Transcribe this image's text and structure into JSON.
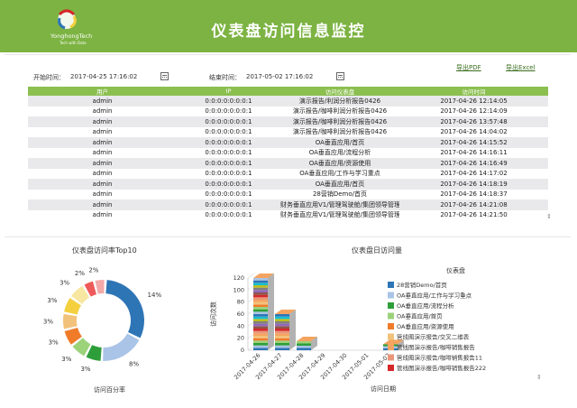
{
  "header": {
    "title": "仪表盘访问信息监控",
    "logo_text": "YonghongTech",
    "logo_sub": "Tech with Data"
  },
  "filters": {
    "start_label": "开始时间：",
    "start_value": "2017-04-25 17:16:02",
    "end_label": "结束时间：",
    "end_value": "2017-05-02 17:16:02",
    "export_pdf": "导出PDF",
    "export_excel": "导出Excel"
  },
  "table": {
    "columns": [
      "用户",
      "IP",
      "访问仪表盘",
      "访问时间"
    ],
    "rows": [
      [
        "admin",
        "0:0:0:0:0:0:0:1",
        "演示报告/利润分析报告0426",
        "2017-04-26 12:14:05"
      ],
      [
        "admin",
        "0:0:0:0:0:0:0:1",
        "演示报告/咖啡利润分析报告0426",
        "2017-04-26 12:14:09"
      ],
      [
        "admin",
        "0:0:0:0:0:0:0:1",
        "演示报告/咖啡利润分析报告0426",
        "2017-04-26 13:57:48"
      ],
      [
        "admin",
        "0:0:0:0:0:0:0:1",
        "演示报告/咖啡利润分析报告0426",
        "2017-04-26 14:04:02"
      ],
      [
        "admin",
        "0:0:0:0:0:0:0:1",
        "OA垂直应用/首页",
        "2017-04-26 14:15:52"
      ],
      [
        "admin",
        "0:0:0:0:0:0:0:1",
        "OA垂直应用/流程分析",
        "2017-04-26 14:16:11"
      ],
      [
        "admin",
        "0:0:0:0:0:0:0:1",
        "OA垂直应用/资源使用",
        "2017-04-26 14:16:49"
      ],
      [
        "admin",
        "0:0:0:0:0:0:0:1",
        "OA垂直应用/工作与学习重点",
        "2017-04-26 14:17:02"
      ],
      [
        "admin",
        "0:0:0:0:0:0:0:1",
        "OA垂直应用/首页",
        "2017-04-26 14:18:19"
      ],
      [
        "admin",
        "0:0:0:0:0:0:0:1",
        "28营销Demo/首页",
        "2017-04-26 14:18:37"
      ],
      [
        "admin",
        "0:0:0:0:0:0:0:1",
        "财务垂直应用V1/管理驾驶舱/集团领导管理驾驶",
        "2017-04-26 14:21:08"
      ],
      [
        "admin",
        "0:0:0:0:0:0:0:1",
        "财务垂直应用V1/管理驾驶舱/集团领导管理驾驶",
        "2017-04-26 14:21:50"
      ]
    ]
  },
  "chart_data": [
    {
      "type": "pie",
      "title": "仪表盘访问率Top10",
      "xlabel": "访问百分率",
      "labels": [
        "14%",
        "8%",
        "3%",
        "3%",
        "3%",
        "3%",
        "3%",
        "3%",
        "2%",
        "2%"
      ],
      "values": [
        14,
        8,
        3,
        3,
        3,
        3,
        3,
        3,
        2,
        2
      ],
      "colors": [
        "#2e75b6",
        "#a9c4e6",
        "#2e9e3a",
        "#9bd27a",
        "#f07c2a",
        "#f3c27a",
        "#f4d03f",
        "#f7e7a1",
        "#ee5a5a",
        "#f4a9a9"
      ]
    },
    {
      "type": "bar",
      "title": "仪表盘日访问量",
      "xlabel": "访问日期",
      "ylabel": "访问次数",
      "ylim": [
        0,
        120
      ],
      "yticks": [
        0,
        20,
        40,
        60,
        80,
        100,
        120
      ],
      "categories": [
        "2017-04-26",
        "2017-04-27",
        "2017-04-28",
        "2017-04-29",
        "2017-04-30",
        "2017-05-01",
        "2017-05-02"
      ],
      "values": [
        120,
        60,
        15,
        0,
        0,
        0,
        10
      ],
      "legend_title": "仪表盘",
      "legend": [
        {
          "name": "28营销Demo/首页",
          "color": "#2e75b6"
        },
        {
          "name": "OA垂直应用/工作与学习重点",
          "color": "#a9c4e6"
        },
        {
          "name": "OA垂直应用/流程分析",
          "color": "#2e9e3a"
        },
        {
          "name": "OA垂直应用/首页",
          "color": "#9bd27a"
        },
        {
          "name": "OA垂直应用/资源使用",
          "color": "#f07c2a"
        },
        {
          "name": "管线图演示报告/交叉二维表",
          "color": "#f3c27a"
        },
        {
          "name": "管线图演示报告/咖啡销售报告",
          "color": "#f4a460"
        },
        {
          "name": "管线图演示报告/咖啡销售报告11",
          "color": "#e9967a"
        },
        {
          "name": "管线图演示报告/咖啡销售报告222",
          "color": "#d62728"
        }
      ]
    }
  ]
}
